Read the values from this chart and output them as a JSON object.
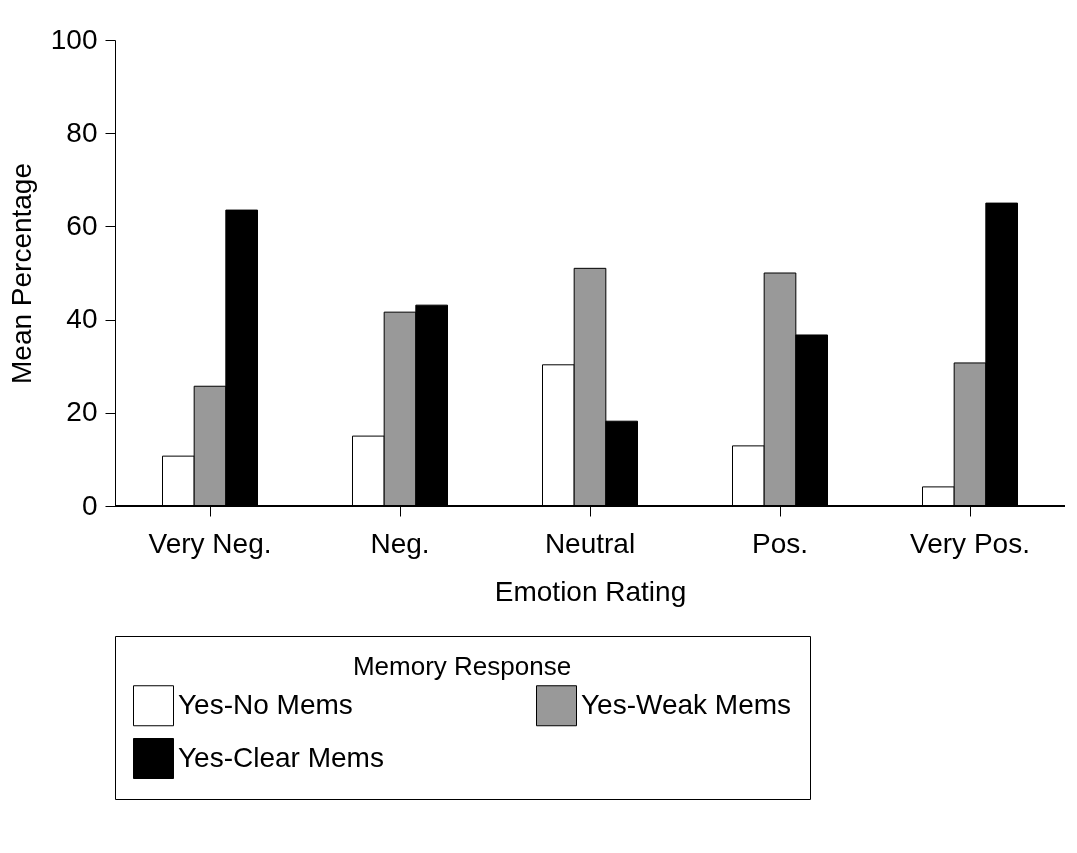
{
  "chart_data": {
    "type": "bar",
    "xlabel": "Emotion Rating",
    "ylabel": "Mean Percentage",
    "legend_title": "Memory Response",
    "categories": [
      "Very Neg.",
      "Neg.",
      "Neutral",
      "Pos.",
      "Very Pos."
    ],
    "series": [
      {
        "name": "Yes-No Mems",
        "color": "#ffffff",
        "values": [
          10.7,
          15,
          30.3,
          12.9,
          4.1
        ]
      },
      {
        "name": "Yes-Weak Mems",
        "color": "#999999",
        "values": [
          25.7,
          41.6,
          51,
          50,
          30.7
        ]
      },
      {
        "name": "Yes-Clear Mems",
        "color": "#000000",
        "values": [
          63.5,
          43.1,
          18.2,
          36.7,
          65
        ]
      }
    ],
    "ylim": [
      0,
      100
    ],
    "yticks": [
      0,
      20,
      40,
      60,
      80,
      100
    ],
    "grid": false,
    "legend": "bottom"
  }
}
